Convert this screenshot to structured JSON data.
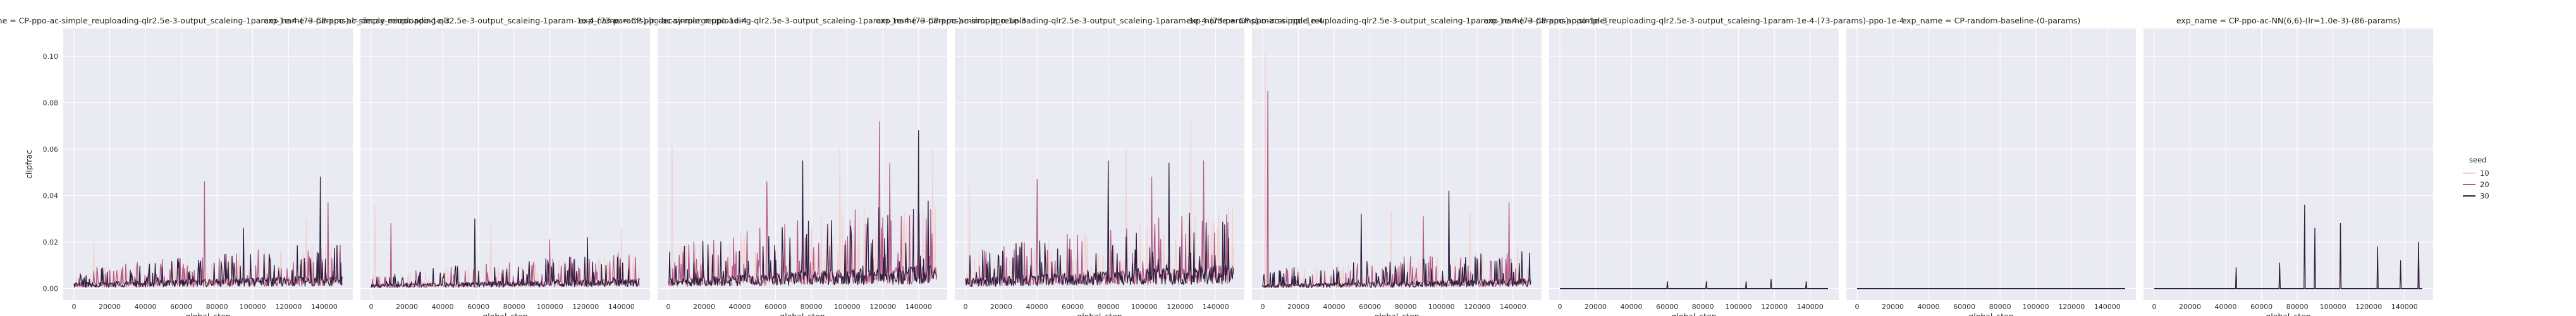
{
  "chart_data": {
    "type": "line",
    "facet_titles": [
      "exp_name = CP-ppo-ac-simple_reuploading-qlr2.5e-3-output_scaleing-1param-1e-4-(73-params)-lr_decay-mirror-ppo-1e-3",
      "exp_name = CP-ppo-ac-simple_reuploading-qlr2.5e-3-output_scaleing-1param-1e-4-(73-params)-lr_decay-mirror-ppo-1e-4",
      "exp_name = CP-ppo-ac-simple_reuploading-qlr2.5e-3-output_scaleing-1param-1e-4-(73-params)-mirror-ppo-1e-3",
      "exp_name = CP-ppo-ac-simple_reuploading-qlr2.5e-3-output_scaleing-1param-1e-4-(73-params)-mirror-ppo-1e-4",
      "exp_name = CP-ppo-ac-simple_reuploading-qlr2.5e-3-output_scaleing-1param-1e-4-(73-params)-ppo-1e-3",
      "exp_name = CP-ppo-ac-simple_reuploading-qlr2.5e-3-output_scaleing-1param-1e-4-(73-params)-ppo-1e-4",
      "exp_name = CP-random-baseline-(0-params)",
      "exp_name = CP-ppo-ac-NN(6,6)-(lr=1.0e-3)-(86-params)"
    ],
    "xlabel": "global_step",
    "ylabel": "clipfrac",
    "xlim": [
      -6000,
      156000
    ],
    "ylim": [
      -0.005,
      0.112
    ],
    "xticks": [
      0,
      20000,
      40000,
      60000,
      80000,
      100000,
      120000,
      140000
    ],
    "xtick_labels": [
      "0",
      "20000",
      "40000",
      "60000",
      "80000",
      "100000",
      "120000",
      "140000"
    ],
    "yticks": [
      0.0,
      0.02,
      0.04,
      0.06,
      0.08,
      0.1
    ],
    "ytick_labels": [
      "0.00",
      "0.02",
      "0.04",
      "0.06",
      "0.08",
      "0.10"
    ],
    "grid": true,
    "legend": {
      "title": "seed",
      "placement": "right",
      "entries": [
        {
          "label": "10",
          "color": "#f1d2cf"
        },
        {
          "label": "20",
          "color": "#b35b88"
        },
        {
          "label": "30",
          "color": "#2c1e3d"
        }
      ]
    },
    "series_style": [
      {
        "seed": "10",
        "color": "#f1d2cf"
      },
      {
        "seed": "20",
        "color": "#b35b88"
      },
      {
        "seed": "30",
        "color": "#2c1e3d"
      }
    ],
    "panel_profiles": [
      {
        "base": 0.004,
        "amp": 0.01,
        "spikes": [
          [
            11000,
            0.02
          ],
          [
            73000,
            0.046
          ],
          [
            138000,
            0.048
          ],
          [
            130000,
            0.03
          ],
          [
            142000,
            0.037
          ],
          [
            95000,
            0.026
          ]
        ]
      },
      {
        "base": 0.003,
        "amp": 0.008,
        "spikes": [
          [
            2000,
            0.036
          ],
          [
            11000,
            0.028
          ],
          [
            58000,
            0.03
          ],
          [
            67000,
            0.027
          ],
          [
            100000,
            0.021
          ],
          [
            121000,
            0.022
          ],
          [
            140000,
            0.026
          ]
        ]
      },
      {
        "base": 0.007,
        "amp": 0.022,
        "spikes": [
          [
            2000,
            0.061
          ],
          [
            55000,
            0.046
          ],
          [
            75000,
            0.055
          ],
          [
            96000,
            0.06
          ],
          [
            118000,
            0.072
          ],
          [
            140000,
            0.068
          ],
          [
            148000,
            0.06
          ],
          [
            124000,
            0.054
          ]
        ]
      },
      {
        "base": 0.007,
        "amp": 0.018,
        "spikes": [
          [
            2000,
            0.045
          ],
          [
            40000,
            0.047
          ],
          [
            80000,
            0.055
          ],
          [
            90000,
            0.06
          ],
          [
            104000,
            0.048
          ],
          [
            114000,
            0.054
          ],
          [
            126000,
            0.073
          ],
          [
            133000,
            0.055
          ]
        ]
      },
      {
        "base": 0.003,
        "amp": 0.01,
        "spikes": [
          [
            1500,
            0.101
          ],
          [
            3000,
            0.085
          ],
          [
            55000,
            0.032
          ],
          [
            72000,
            0.033
          ],
          [
            90000,
            0.031
          ],
          [
            104000,
            0.042
          ],
          [
            116000,
            0.033
          ],
          [
            138000,
            0.037
          ]
        ]
      },
      {
        "base": 0.0,
        "amp": 0.0,
        "spikes": [
          [
            60000,
            0.003
          ],
          [
            82000,
            0.003
          ],
          [
            104000,
            0.003
          ],
          [
            118000,
            0.004
          ],
          [
            138000,
            0.003
          ]
        ]
      },
      {
        "base": 0.0,
        "amp": 0.0,
        "spikes": []
      },
      {
        "base": 0.0,
        "amp": 0.0,
        "spikes": [
          [
            46000,
            0.009
          ],
          [
            70000,
            0.011
          ],
          [
            84000,
            0.036
          ],
          [
            90000,
            0.026
          ],
          [
            104000,
            0.028
          ],
          [
            125000,
            0.018
          ],
          [
            138000,
            0.012
          ],
          [
            148000,
            0.02
          ]
        ]
      }
    ]
  }
}
